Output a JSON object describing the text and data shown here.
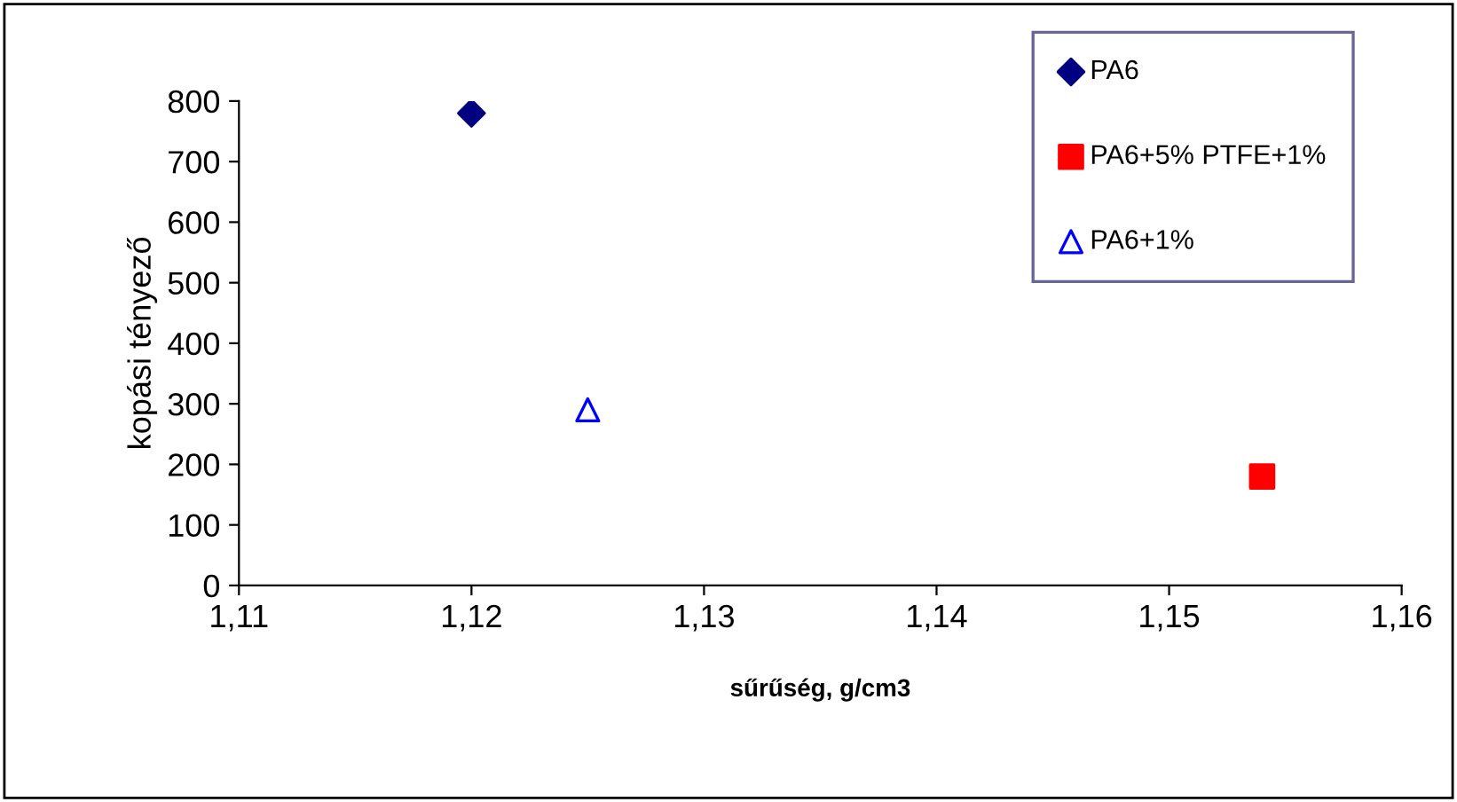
{
  "chart_data": {
    "type": "scatter",
    "xlabel": "sűrűség, g/cm3",
    "ylabel": "kopási tényező",
    "xlim": [
      1.11,
      1.16
    ],
    "xticks": [
      {
        "value": 1.11,
        "label": "1,11"
      },
      {
        "value": 1.12,
        "label": "1,12"
      },
      {
        "value": 1.13,
        "label": "1,13"
      },
      {
        "value": 1.14,
        "label": "1,14"
      },
      {
        "value": 1.15,
        "label": "1,15"
      },
      {
        "value": 1.16,
        "label": "1,16"
      }
    ],
    "ylim": [
      0,
      800
    ],
    "yticks": [
      0,
      100,
      200,
      300,
      400,
      500,
      600,
      700,
      800
    ],
    "grid": false,
    "legend": "top right",
    "series": [
      {
        "name": "PA6",
        "color": "#000080",
        "marker": "diamond",
        "x": [
          1.12
        ],
        "values": [
          780
        ]
      },
      {
        "name": "PA6+5% PTFE+1%",
        "color": "#ff0000",
        "marker": "square",
        "x": [
          1.154
        ],
        "values": [
          180
        ]
      },
      {
        "name": "PA6+1%",
        "color": "#0000ff",
        "marker": "triangle",
        "x": [
          1.125
        ],
        "values": [
          290
        ]
      }
    ]
  }
}
